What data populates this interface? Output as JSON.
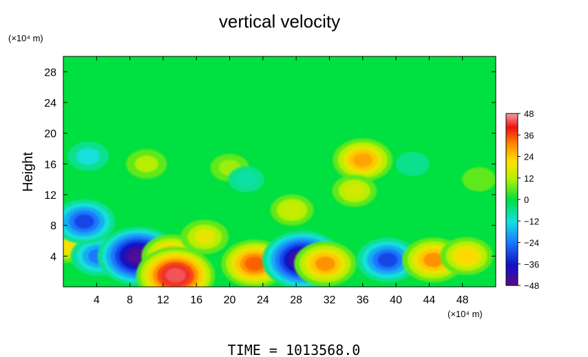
{
  "chart_data": {
    "type": "heatmap",
    "title": "vertical velocity",
    "xlabel": "",
    "ylabel": "Height",
    "x_unit": "(×10⁴ m)",
    "y_unit": "(×10⁴ m)",
    "footer": "TIME = 1013568.0",
    "xlim": [
      0,
      52
    ],
    "ylim": [
      0,
      30
    ],
    "x_ticks": [
      4,
      8,
      12,
      16,
      20,
      24,
      28,
      32,
      36,
      40,
      44,
      48
    ],
    "y_ticks": [
      4,
      8,
      12,
      16,
      20,
      24,
      28
    ],
    "colorbar": {
      "min": -48,
      "max": 48,
      "ticks": [
        48,
        36,
        24,
        12,
        0,
        -12,
        -24,
        -36,
        -48
      ],
      "tick_labels": [
        "48",
        "36",
        "24",
        "12",
        "0",
        "−12",
        "−24",
        "−36",
        "−48"
      ]
    },
    "background_value": 0,
    "features": [
      {
        "x": 0.5,
        "y": 5.5,
        "value": 20
      },
      {
        "x": 4.2,
        "y": 4.0,
        "value": -24
      },
      {
        "x": 2.5,
        "y": 8.5,
        "value": -30
      },
      {
        "x": 9.0,
        "y": 4.0,
        "value": -46
      },
      {
        "x": 13.0,
        "y": 4.0,
        "value": 28
      },
      {
        "x": 13.5,
        "y": 1.5,
        "value": 44
      },
      {
        "x": 17.0,
        "y": 6.5,
        "value": 18
      },
      {
        "x": 23.0,
        "y": 3.0,
        "value": 34
      },
      {
        "x": 28.8,
        "y": 3.5,
        "value": -46
      },
      {
        "x": 31.5,
        "y": 3.0,
        "value": 30
      },
      {
        "x": 39.0,
        "y": 3.5,
        "value": -30
      },
      {
        "x": 44.5,
        "y": 3.5,
        "value": 30
      },
      {
        "x": 48.5,
        "y": 4.0,
        "value": 22
      },
      {
        "x": 36.0,
        "y": 16.5,
        "value": 28
      },
      {
        "x": 35.0,
        "y": 12.5,
        "value": 15
      },
      {
        "x": 10.0,
        "y": 16.0,
        "value": 12
      },
      {
        "x": 20.0,
        "y": 15.5,
        "value": 10
      },
      {
        "x": 27.5,
        "y": 10.0,
        "value": 14
      },
      {
        "x": 3.0,
        "y": 17.0,
        "value": -12
      },
      {
        "x": 22.0,
        "y": 14.0,
        "value": -8
      },
      {
        "x": 42.0,
        "y": 16.0,
        "value": -6
      },
      {
        "x": 50.0,
        "y": 14.0,
        "value": 6
      }
    ]
  }
}
